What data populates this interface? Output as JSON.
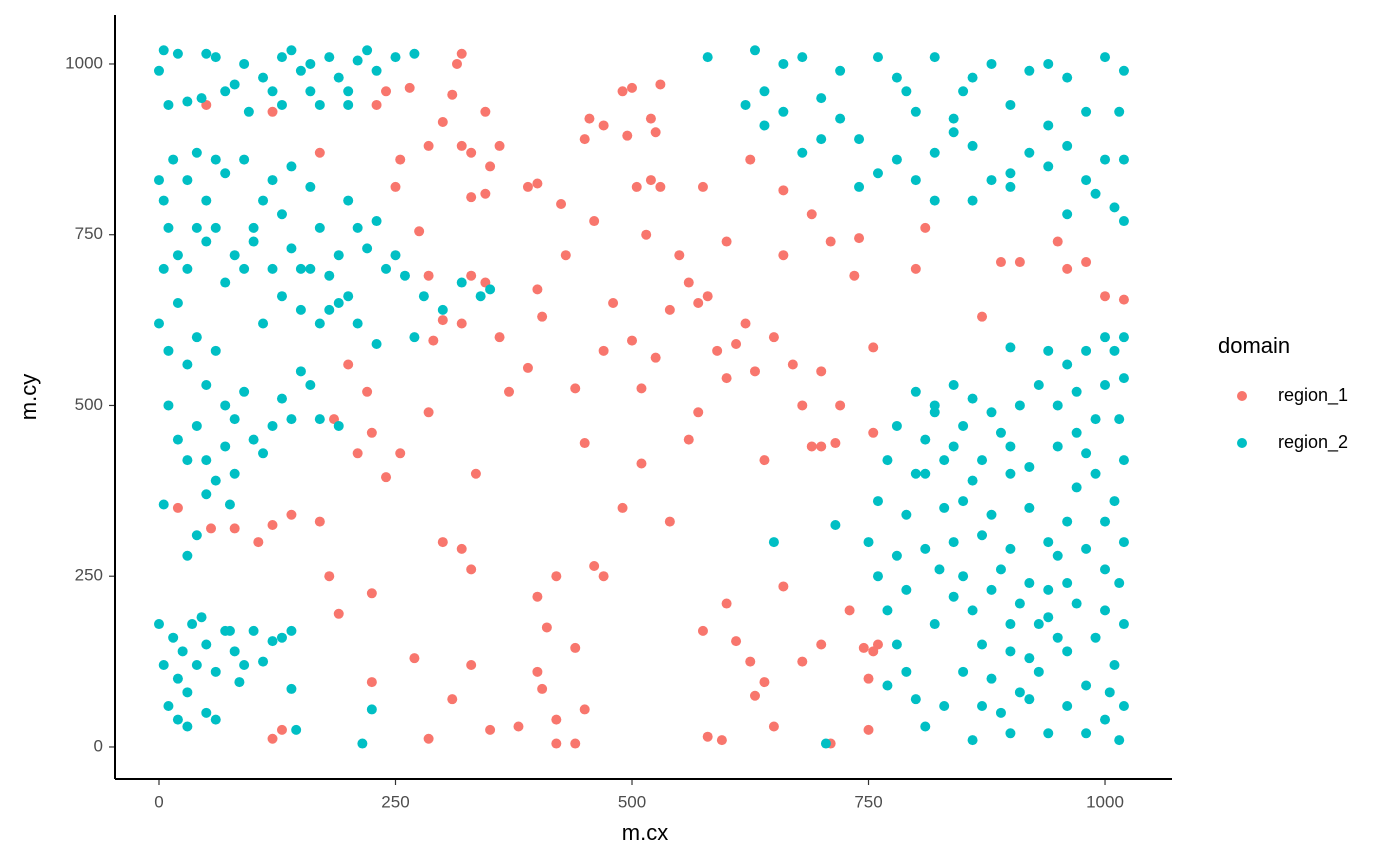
{
  "chart_data": {
    "type": "scatter",
    "x_label": "m.cx",
    "y_label": "m.cy",
    "legend_title": "domain",
    "legend_position": "right",
    "grid": false,
    "xlim": [
      -46.5,
      1070.8
    ],
    "ylim": [
      -46.9,
      1071.7
    ],
    "xticks": [
      0,
      250,
      500,
      750,
      1000
    ],
    "yticks": [
      0,
      250,
      500,
      750,
      1000
    ],
    "series": [
      {
        "name": "region_1",
        "color": "#F8766D",
        "x": [
          50,
          120,
          240,
          265,
          320,
          315,
          310,
          285,
          300,
          320,
          330,
          345,
          360,
          350,
          330,
          345,
          390,
          400,
          425,
          450,
          455,
          470,
          490,
          500,
          530,
          520,
          525,
          495,
          520,
          505,
          530,
          515,
          560,
          575,
          600,
          580,
          625,
          660,
          690,
          740,
          800,
          810,
          870,
          910,
          950,
          960,
          980,
          1000,
          1020,
          890,
          230,
          170,
          250,
          255,
          275,
          285,
          290,
          300,
          320,
          330,
          345,
          360,
          370,
          400,
          405,
          390,
          430,
          440,
          450,
          470,
          460,
          480,
          500,
          510,
          525,
          540,
          550,
          570,
          590,
          600,
          610,
          620,
          630,
          650,
          670,
          680,
          690,
          700,
          720,
          715,
          755,
          755,
          735,
          710,
          660,
          200,
          220,
          225,
          240,
          210,
          185,
          255,
          285,
          180,
          190,
          170,
          120,
          105,
          140,
          80,
          55,
          20,
          225,
          300,
          320,
          330,
          335,
          400,
          410,
          420,
          440,
          460,
          470,
          490,
          510,
          540,
          400,
          405,
          380,
          350,
          330,
          310,
          285,
          270,
          225,
          120,
          130,
          420,
          440,
          420,
          450,
          560,
          570,
          575,
          580,
          595,
          600,
          610,
          625,
          630,
          640,
          640,
          660,
          680,
          700,
          710,
          730,
          745,
          755,
          760,
          750,
          750,
          650,
          700
        ],
        "values": [
          940,
          930,
          960,
          965,
          1015,
          1000,
          955,
          880,
          915,
          880,
          870,
          930,
          880,
          850,
          805,
          810,
          820,
          825,
          795,
          890,
          920,
          910,
          960,
          965,
          970,
          920,
          900,
          895,
          830,
          820,
          820,
          750,
          680,
          820,
          740,
          660,
          860,
          815,
          780,
          745,
          700,
          760,
          630,
          710,
          740,
          700,
          710,
          660,
          655,
          710,
          940,
          870,
          820,
          860,
          755,
          690,
          595,
          625,
          620,
          690,
          680,
          600,
          520,
          670,
          630,
          555,
          720,
          525,
          445,
          580,
          770,
          650,
          595,
          525,
          570,
          640,
          720,
          490,
          580,
          540,
          590,
          620,
          550,
          600,
          560,
          500,
          440,
          550,
          500,
          445,
          460,
          585,
          690,
          740,
          720,
          560,
          520,
          460,
          395,
          430,
          480,
          430,
          490,
          250,
          195,
          330,
          325,
          300,
          340,
          320,
          320,
          350,
          225,
          300,
          290,
          260,
          400,
          220,
          175,
          250,
          145,
          265,
          250,
          350,
          415,
          330,
          110,
          85,
          30,
          25,
          120,
          70,
          12,
          130,
          95,
          12,
          25,
          5,
          5,
          40,
          55,
          450,
          650,
          170,
          15,
          10,
          210,
          155,
          125,
          75,
          95,
          420,
          235,
          125,
          150,
          5,
          200,
          145,
          140,
          150,
          25,
          100,
          30,
          440
        ]
      },
      {
        "name": "region_2",
        "color": "#00BFC4",
        "x": [
          0,
          5,
          20,
          30,
          50,
          60,
          70,
          80,
          90,
          95,
          110,
          120,
          130,
          140,
          150,
          160,
          170,
          180,
          190,
          200,
          210,
          220,
          230,
          250,
          270,
          10,
          45,
          130,
          200,
          160,
          620,
          640,
          660,
          680,
          700,
          720,
          740,
          760,
          780,
          800,
          820,
          840,
          860,
          880,
          900,
          920,
          940,
          960,
          980,
          1000,
          1020,
          1015,
          1000,
          980,
          960,
          940,
          920,
          900,
          880,
          860,
          840,
          820,
          800,
          780,
          760,
          740,
          720,
          700,
          680,
          660,
          640,
          820,
          860,
          900,
          940,
          1010,
          1020,
          990,
          960,
          580,
          630,
          850,
          790,
          1020,
          0,
          5,
          10,
          15,
          30,
          40,
          50,
          60,
          70,
          80,
          90,
          100,
          110,
          120,
          130,
          140,
          150,
          160,
          170,
          180,
          190,
          200,
          210,
          220,
          230,
          240,
          250,
          260,
          280,
          300,
          320,
          340,
          350,
          130,
          150,
          170,
          190,
          210,
          230,
          110,
          90,
          70,
          50,
          30,
          20,
          5,
          40,
          60,
          100,
          120,
          160,
          180,
          200,
          140,
          270,
          0,
          10,
          20,
          30,
          40,
          50,
          60,
          70,
          80,
          90,
          100,
          110,
          120,
          130,
          140,
          150,
          160,
          10,
          20,
          30,
          40,
          50,
          60,
          70,
          80,
          5,
          40,
          30,
          50,
          75,
          170,
          190,
          0,
          5,
          10,
          15,
          20,
          25,
          30,
          35,
          40,
          45,
          50,
          60,
          70,
          80,
          90,
          100,
          110,
          20,
          30,
          50,
          60,
          85,
          75,
          130,
          140,
          140,
          145,
          215,
          225,
          120,
          750,
          760,
          770,
          780,
          790,
          800,
          810,
          820,
          830,
          840,
          850,
          860,
          870,
          880,
          890,
          900,
          910,
          920,
          930,
          940,
          950,
          960,
          970,
          980,
          990,
          1000,
          1010,
          1020,
          1020,
          1015,
          1020,
          1010,
          1020,
          1015,
          1020,
          1010,
          1020,
          1015,
          1000,
          980,
          960,
          940,
          920,
          900,
          880,
          860,
          840,
          820,
          800,
          780,
          770,
          760,
          790,
          800,
          810,
          830,
          850,
          870,
          860,
          900,
          920,
          940,
          960,
          980,
          990,
          970,
          950,
          930,
          910,
          890,
          870,
          850,
          870,
          890,
          910,
          930,
          950,
          970,
          990,
          1000,
          980,
          960,
          940,
          920,
          900,
          880,
          860,
          840,
          960,
          980,
          1000,
          940,
          900,
          780,
          770,
          820,
          840,
          880,
          900,
          1000,
          1000,
          1005,
          705,
          715,
          650,
          825,
          810,
          790,
          810,
          830,
          850,
          900,
          920,
          950,
          970
        ],
        "values": [
          990,
          1020,
          1015,
          945,
          1015,
          1010,
          960,
          970,
          1000,
          930,
          980,
          960,
          1010,
          1020,
          990,
          1000,
          940,
          1010,
          980,
          960,
          1005,
          1020,
          990,
          1010,
          1015,
          940,
          950,
          940,
          940,
          960,
          940,
          960,
          1000,
          1010,
          950,
          990,
          890,
          1010,
          980,
          930,
          1010,
          920,
          980,
          1000,
          940,
          990,
          1000,
          980,
          930,
          1010,
          990,
          930,
          860,
          830,
          880,
          910,
          870,
          840,
          830,
          880,
          900,
          870,
          830,
          860,
          840,
          820,
          920,
          890,
          870,
          930,
          910,
          800,
          800,
          820,
          850,
          790,
          770,
          810,
          780,
          1010,
          1020,
          960,
          960,
          860,
          830,
          800,
          760,
          860,
          830,
          870,
          800,
          760,
          840,
          720,
          860,
          760,
          800,
          830,
          780,
          850,
          700,
          820,
          760,
          690,
          720,
          800,
          760,
          730,
          770,
          700,
          720,
          690,
          660,
          640,
          680,
          660,
          670,
          660,
          640,
          620,
          650,
          620,
          590,
          620,
          700,
          680,
          740,
          700,
          720,
          700,
          760,
          860,
          740,
          700,
          700,
          640,
          660,
          730,
          600,
          620,
          580,
          650,
          560,
          600,
          530,
          580,
          500,
          480,
          520,
          450,
          430,
          470,
          510,
          480,
          550,
          530,
          500,
          450,
          420,
          470,
          420,
          390,
          440,
          400,
          355,
          310,
          280,
          370,
          355,
          480,
          470,
          180,
          120,
          60,
          160,
          100,
          140,
          80,
          180,
          120,
          190,
          150,
          110,
          170,
          140,
          120,
          170,
          125,
          40,
          30,
          50,
          40,
          95,
          170,
          160,
          170,
          85,
          25,
          5,
          55,
          155,
          300,
          250,
          200,
          280,
          340,
          400,
          450,
          500,
          350,
          300,
          250,
          200,
          150,
          100,
          50,
          20,
          80,
          130,
          180,
          230,
          280,
          330,
          380,
          430,
          480,
          530,
          580,
          600,
          540,
          480,
          420,
          360,
          300,
          240,
          180,
          120,
          60,
          10,
          40,
          90,
          140,
          190,
          240,
          290,
          340,
          390,
          440,
          490,
          520,
          470,
          420,
          360,
          110,
          70,
          30,
          60,
          110,
          60,
          10,
          140,
          70,
          20,
          60,
          20,
          160,
          210,
          160,
          110,
          210,
          260,
          310,
          360,
          420,
          460,
          500,
          530,
          500,
          460,
          400,
          330,
          290,
          240,
          300,
          350,
          400,
          490,
          510,
          530,
          560,
          580,
          600,
          580,
          585,
          150,
          90,
          180,
          220,
          230,
          180,
          200,
          260,
          80,
          5,
          325,
          300,
          260,
          290,
          230,
          400,
          420,
          470,
          440,
          410,
          440,
          520
        ]
      }
    ]
  }
}
